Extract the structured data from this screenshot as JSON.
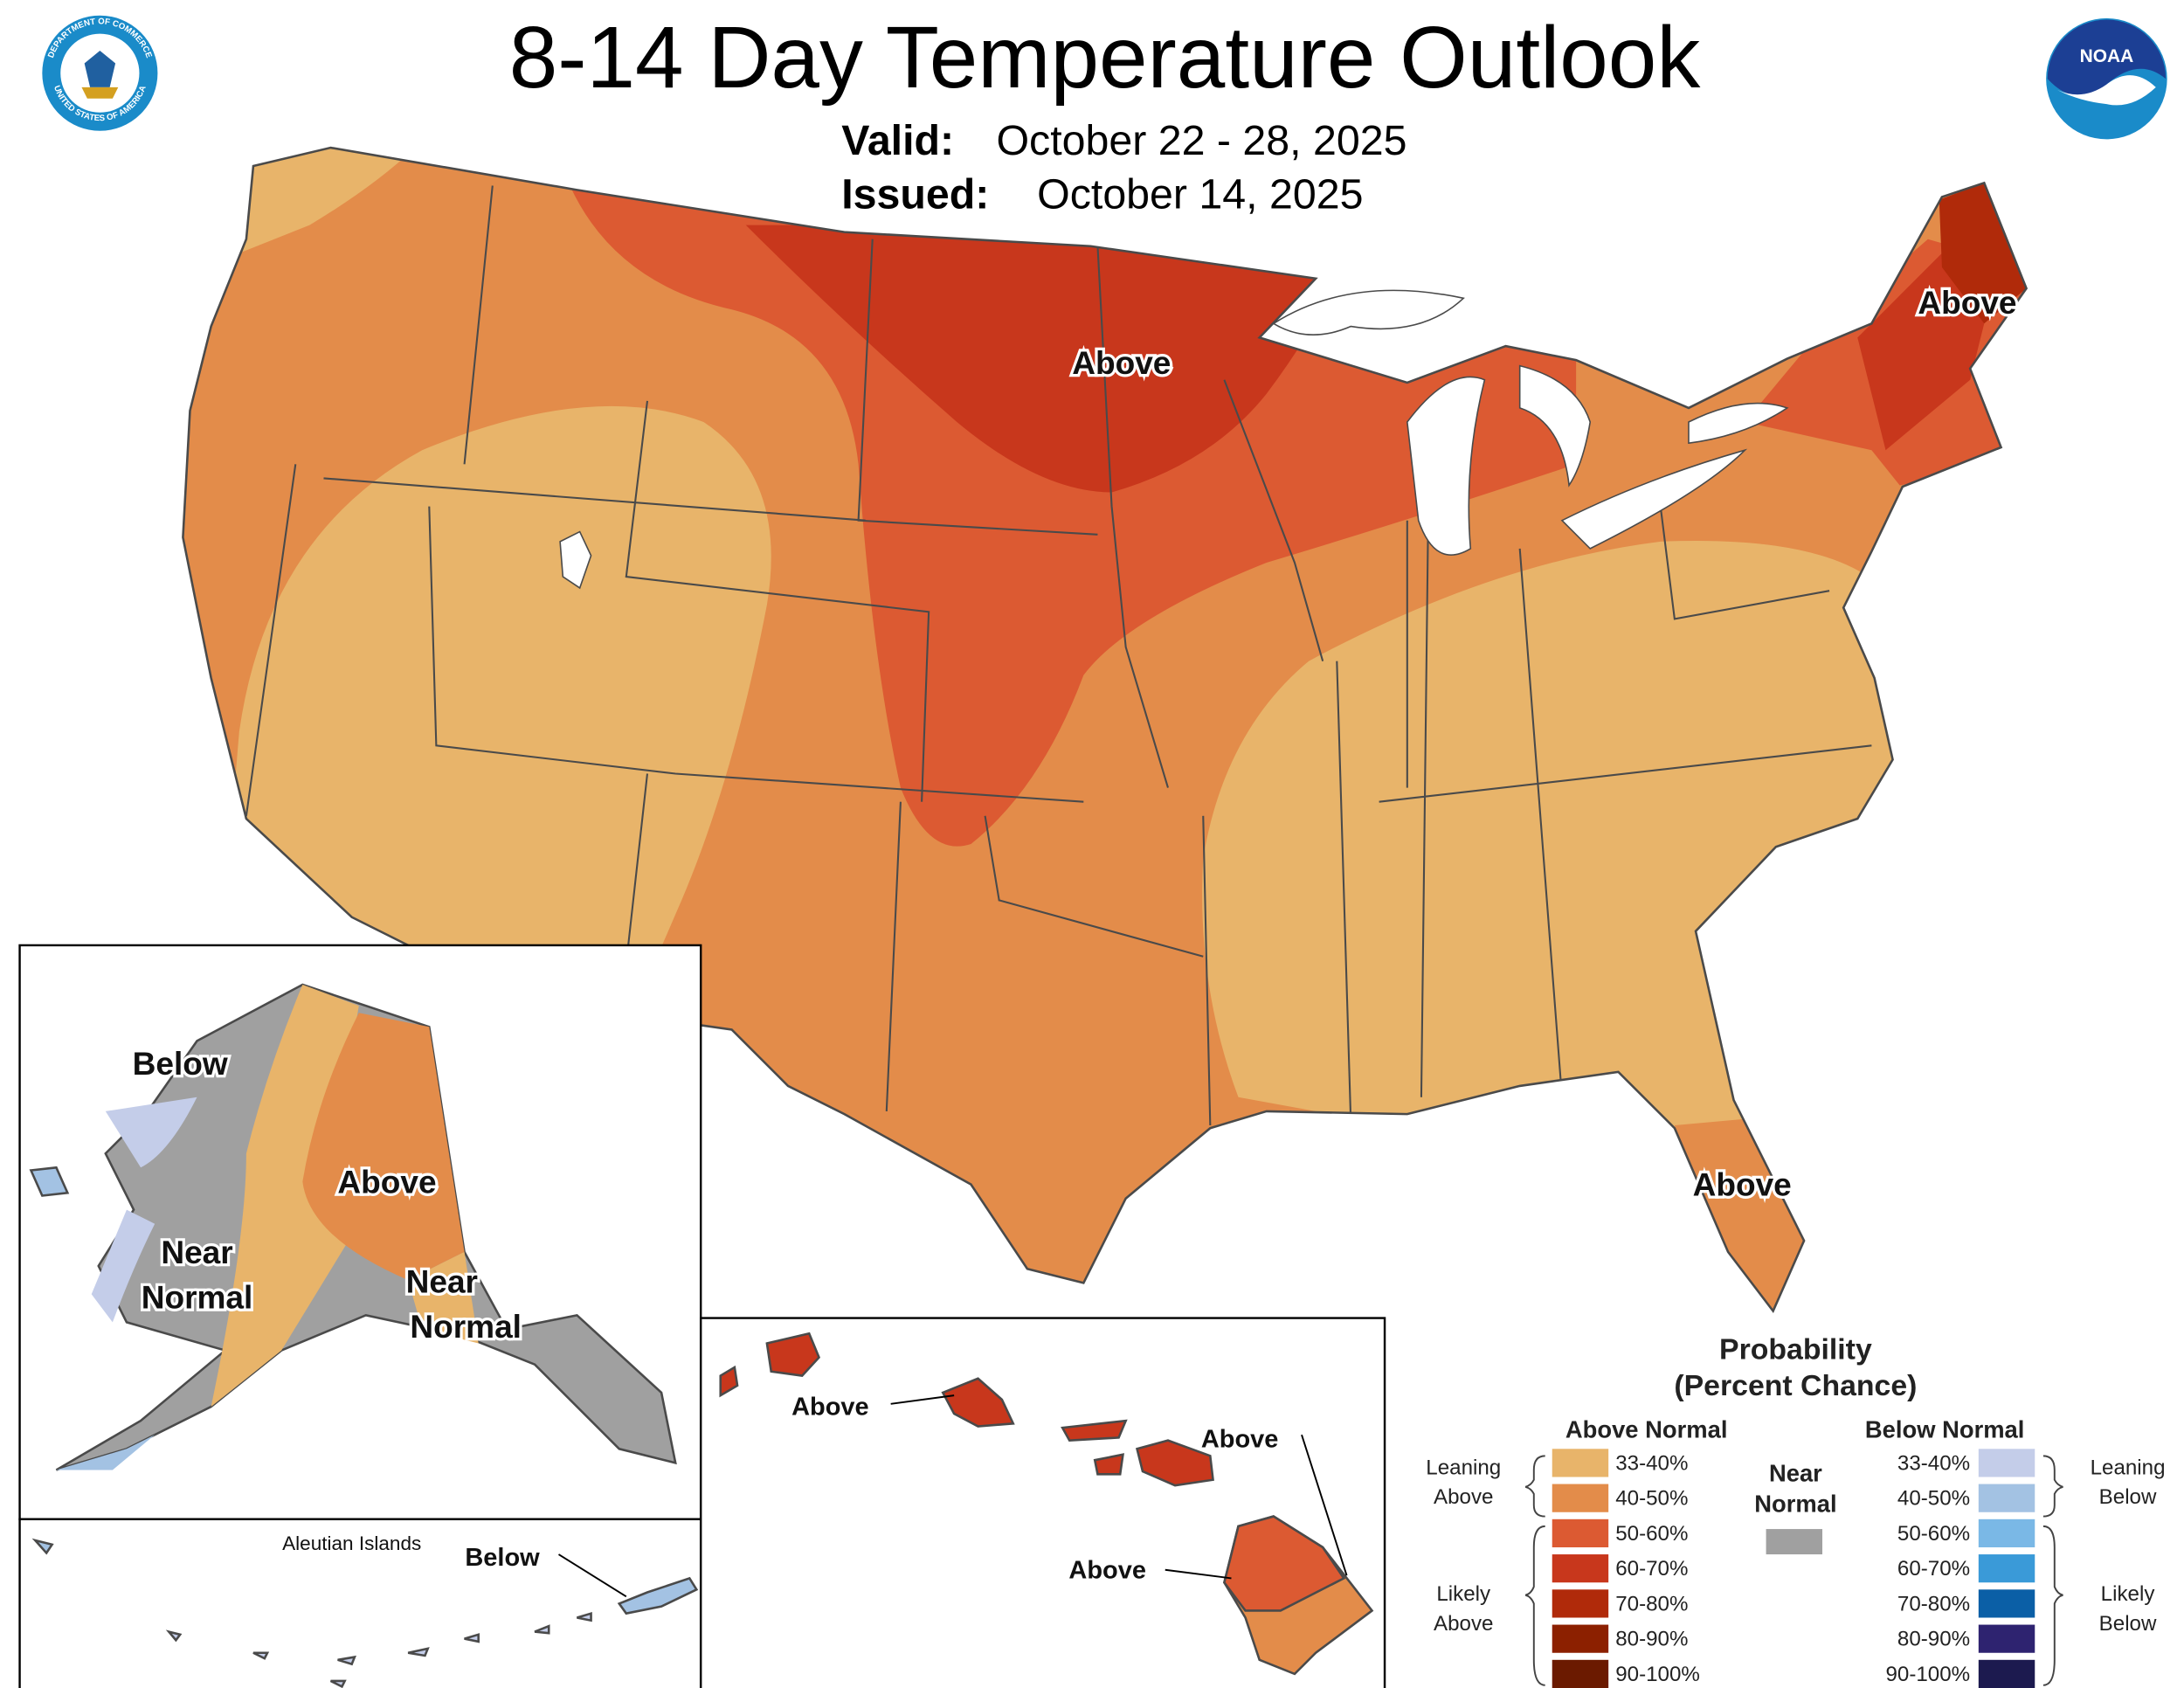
{
  "header": {
    "title": "8-14 Day Temperature Outlook",
    "valid_label": "Valid:",
    "valid_value": "October 22 - 28, 2025",
    "issued_label": "Issued:",
    "issued_value": "October 14, 2025",
    "left_logo": [
      "DEPARTMENT OF COMMERCE",
      "UNITED STATES OF AMERICA"
    ],
    "right_logo": "NOAA"
  },
  "map_labels": [
    [
      "Above"
    ],
    [
      "Above"
    ],
    [
      "Above"
    ],
    [
      "Below"
    ],
    [
      "Above"
    ],
    [
      "Near",
      "Normal"
    ],
    [
      "Near",
      "Normal"
    ],
    [
      "Below"
    ],
    [
      "Above"
    ],
    [
      "Above"
    ],
    [
      "Above"
    ]
  ],
  "inset_title": "Aleutian Islands",
  "legend": {
    "title": [
      "Probability",
      "(Percent Chance)"
    ],
    "above": {
      "heading": "Above Normal",
      "items": [
        {
          "label": "33-40%",
          "color": "#e8b46a"
        },
        {
          "label": "40-50%",
          "color": "#e38c4a"
        },
        {
          "label": "50-60%",
          "color": "#dc5a32"
        },
        {
          "label": "60-70%",
          "color": "#c8371c"
        },
        {
          "label": "70-80%",
          "color": "#b02a0a"
        },
        {
          "label": "80-90%",
          "color": "#8c2000"
        },
        {
          "label": "90-100%",
          "color": "#6b1a00"
        }
      ],
      "groups": [
        [
          "Leaning",
          "Above"
        ],
        [
          "Likely",
          "Above"
        ]
      ]
    },
    "near": {
      "heading": [
        "Near",
        "Normal"
      ],
      "color": "#a0a0a0"
    },
    "below": {
      "heading": "Below Normal",
      "items": [
        {
          "label": "33-40%",
          "color": "#c4cde9"
        },
        {
          "label": "40-50%",
          "color": "#a3c2e3"
        },
        {
          "label": "50-60%",
          "color": "#7ab8e6"
        },
        {
          "label": "60-70%",
          "color": "#3a9ad8"
        },
        {
          "label": "70-80%",
          "color": "#0b5fa6"
        },
        {
          "label": "80-90%",
          "color": "#2e2370"
        },
        {
          "label": "90-100%",
          "color": "#1c1a4f"
        }
      ],
      "groups": [
        [
          "Leaning",
          "Below"
        ],
        [
          "Likely",
          "Below"
        ]
      ]
    }
  }
}
